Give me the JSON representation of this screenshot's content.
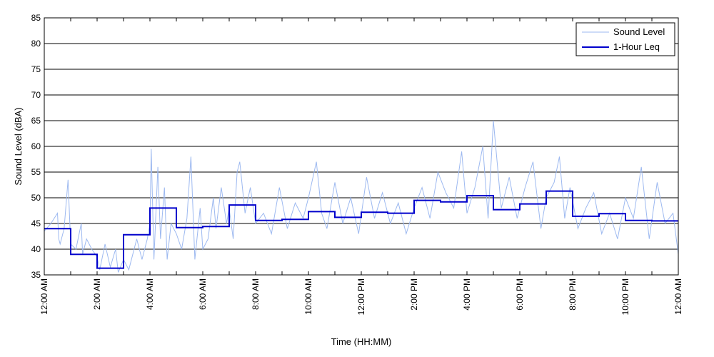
{
  "chart_data": {
    "type": "line",
    "xlabel": "Time (HH:MM)",
    "ylabel": "Sound Level (dBA)",
    "ylim": [
      35,
      85
    ],
    "yticks": [
      35,
      40,
      45,
      50,
      55,
      60,
      65,
      70,
      75,
      80,
      85
    ],
    "xlim_hours": [
      0,
      24
    ],
    "xticks": [
      {
        "hour": 0,
        "label": "12:00 AM"
      },
      {
        "hour": 2,
        "label": "2:00 AM"
      },
      {
        "hour": 4,
        "label": "4:00 AM"
      },
      {
        "hour": 6,
        "label": "6:00 AM"
      },
      {
        "hour": 8,
        "label": "8:00 AM"
      },
      {
        "hour": 10,
        "label": "10:00 AM"
      },
      {
        "hour": 12,
        "label": "12:00 PM"
      },
      {
        "hour": 14,
        "label": "2:00 PM"
      },
      {
        "hour": 16,
        "label": "4:00 PM"
      },
      {
        "hour": 18,
        "label": "6:00 PM"
      },
      {
        "hour": 20,
        "label": "8:00 PM"
      },
      {
        "hour": 22,
        "label": "10:00 PM"
      },
      {
        "hour": 24,
        "label": "12:00 AM"
      }
    ],
    "minor_xtick_hours": [
      1,
      3,
      5,
      7,
      9,
      11,
      13,
      15,
      17,
      19,
      21,
      23
    ],
    "grid": "horizontal",
    "legend": {
      "position": "top-right"
    },
    "series": [
      {
        "name": "Sound Level",
        "color": "#9db9f0",
        "x_hours": [
          0,
          0.25,
          0.5,
          0.55,
          0.6,
          0.75,
          0.9,
          1,
          1.2,
          1.4,
          1.45,
          1.6,
          1.8,
          2,
          2.1,
          2.3,
          2.5,
          2.7,
          2.8,
          3,
          3.2,
          3.4,
          3.5,
          3.7,
          3.9,
          4,
          4.05,
          4.15,
          4.3,
          4.4,
          4.55,
          4.65,
          4.8,
          5,
          5.2,
          5.4,
          5.55,
          5.7,
          5.9,
          6,
          6.2,
          6.4,
          6.5,
          6.7,
          6.9,
          7,
          7.15,
          7.3,
          7.4,
          7.6,
          7.8,
          8,
          8.3,
          8.6,
          8.9,
          9.2,
          9.5,
          9.8,
          10,
          10.3,
          10.5,
          10.7,
          11,
          11.3,
          11.6,
          11.9,
          12.2,
          12.5,
          12.8,
          13.1,
          13.4,
          13.7,
          14,
          14.3,
          14.6,
          14.9,
          15.2,
          15.5,
          15.8,
          16,
          16.3,
          16.6,
          16.8,
          17,
          17.3,
          17.6,
          17.9,
          18.2,
          18.5,
          18.8,
          19,
          19.3,
          19.5,
          19.7,
          19.9,
          20.2,
          20.5,
          20.8,
          21.1,
          21.4,
          21.7,
          22,
          22.3,
          22.6,
          22.9,
          23.2,
          23.5,
          23.8,
          24
        ],
        "values": [
          43.5,
          45,
          47,
          42,
          41,
          44,
          53.5,
          41,
          40,
          45,
          39,
          42,
          40,
          38.5,
          36,
          41,
          36.5,
          40,
          35.5,
          38,
          36,
          40,
          42,
          38,
          42,
          45,
          59.5,
          38,
          56,
          42,
          52,
          38,
          45,
          43,
          40,
          46,
          58,
          38,
          48,
          40,
          42,
          50,
          44,
          52,
          45,
          48,
          42,
          55,
          57,
          47,
          52,
          45,
          47,
          43,
          52,
          44,
          49,
          46,
          50,
          57,
          47,
          44,
          53,
          45,
          50,
          43,
          54,
          46,
          51,
          45,
          49,
          43,
          48,
          52,
          46,
          55,
          51,
          48,
          59,
          47,
          52,
          60,
          46,
          65,
          48,
          54,
          46,
          52,
          57,
          44,
          50,
          53,
          58,
          46,
          52,
          44,
          48,
          51,
          43,
          47,
          42,
          50,
          46,
          56,
          42,
          53,
          45,
          47,
          39
        ]
      },
      {
        "name": "1-Hour Leq",
        "color": "#0000cc",
        "step_hourly_values": [
          44.0,
          39.0,
          36.3,
          42.8,
          48.0,
          44.2,
          44.4,
          48.6,
          45.6,
          45.8,
          47.3,
          46.2,
          47.2,
          47.0,
          49.5,
          49.2,
          50.4,
          47.7,
          48.8,
          51.3,
          46.4,
          46.9,
          45.6,
          45.5
        ]
      }
    ]
  }
}
